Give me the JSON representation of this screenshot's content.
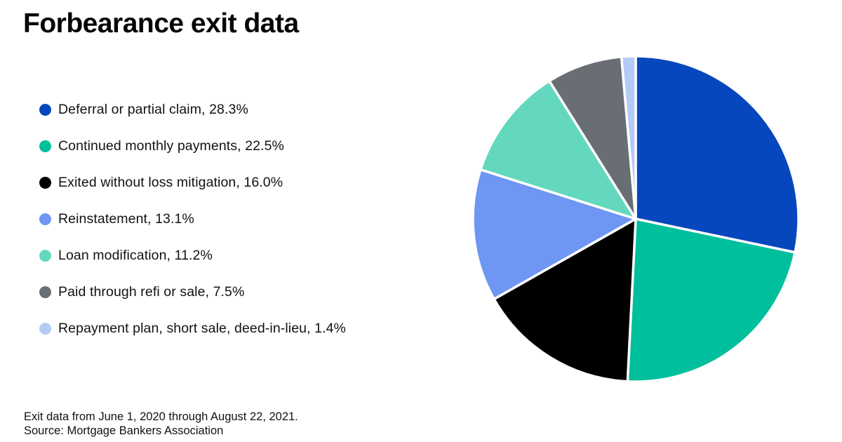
{
  "title": "Forbearance exit data",
  "legend": {
    "items": [
      {
        "text": "Deferral or partial claim, 28.3%",
        "color": "#0747bd"
      },
      {
        "text": "Continued monthly payments, 22.5%",
        "color": "#00bf9c"
      },
      {
        "text": "Exited without loss mitigation, 16.0%",
        "color": "#000000"
      },
      {
        "text": "Reinstatement, 13.1%",
        "color": "#6e96f2"
      },
      {
        "text": "Loan modification, 11.2%",
        "color": "#63d8be"
      },
      {
        "text": "Paid through refi or sale, 7.5%",
        "color": "#696e74"
      },
      {
        "text": "Repayment plan, short sale, deed-in-lieu, 1.4%",
        "color": "#b4cbf7"
      }
    ]
  },
  "footer": {
    "line1": "Exit data from June 1, 2020 through August 22, 2021.",
    "line2": "Source: Mortgage Bankers Association"
  },
  "chart_data": {
    "type": "pie",
    "title": "Forbearance exit data",
    "labels": [
      "Deferral or partial claim",
      "Continued monthly payments",
      "Exited without loss mitigation",
      "Reinstatement",
      "Loan modification",
      "Paid through refi or sale",
      "Repayment plan, short sale, deed-in-lieu"
    ],
    "values": [
      28.3,
      22.5,
      16.0,
      13.1,
      11.2,
      7.5,
      1.4
    ],
    "colors": [
      "#0747bd",
      "#00bf9c",
      "#000000",
      "#6e96f2",
      "#63d8be",
      "#696e74",
      "#b4cbf7"
    ],
    "unit": "%",
    "start_angle": "12-o-clock",
    "direction": "clockwise",
    "slice_separator_color": "#ffffff",
    "legend_position": "left"
  }
}
